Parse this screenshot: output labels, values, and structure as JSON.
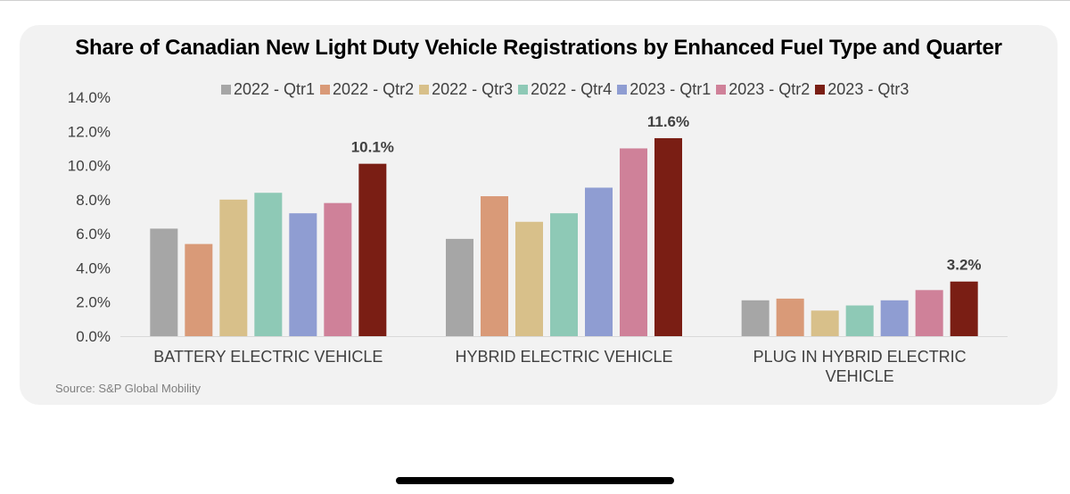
{
  "chart_data": {
    "type": "bar",
    "title": "Share of Canadian New Light Duty Vehicle Registrations by Enhanced Fuel Type and Quarter",
    "categories": [
      [
        "BATTERY ELECTRIC VEHICLE"
      ],
      [
        "HYBRID ELECTRIC VEHICLE"
      ],
      [
        "PLUG IN HYBRID ELECTRIC",
        "VEHICLE"
      ]
    ],
    "series": [
      {
        "name": "2022 - Qtr1",
        "color": "#a6a6a6",
        "values": [
          6.3,
          5.7,
          2.1
        ]
      },
      {
        "name": "2022 - Qtr2",
        "color": "#d99a78",
        "values": [
          5.4,
          8.2,
          2.2
        ]
      },
      {
        "name": "2022 - Qtr3",
        "color": "#d8c08a",
        "values": [
          8.0,
          6.7,
          1.5
        ]
      },
      {
        "name": "2022 - Qtr4",
        "color": "#8ec9b6",
        "values": [
          8.4,
          7.2,
          1.8
        ]
      },
      {
        "name": "2023 - Qtr1",
        "color": "#8f9dd2",
        "values": [
          7.2,
          8.7,
          2.1
        ]
      },
      {
        "name": "2023 - Qtr2",
        "color": "#cf8199",
        "values": [
          7.8,
          11.0,
          2.7
        ]
      },
      {
        "name": "2023 - Qtr3",
        "color": "#7a1e14",
        "values": [
          10.1,
          11.6,
          3.2
        ]
      }
    ],
    "yticks": [
      "0.0%",
      "2.0%",
      "4.0%",
      "6.0%",
      "8.0%",
      "10.0%",
      "12.0%",
      "14.0%"
    ],
    "ylim": [
      0,
      14
    ],
    "data_labels": [
      {
        "category": 0,
        "series": 6,
        "text": "10.1%"
      },
      {
        "category": 1,
        "series": 6,
        "text": "11.6%"
      },
      {
        "category": 2,
        "series": 6,
        "text": "3.2%"
      }
    ],
    "xlabel": "",
    "ylabel": "",
    "grid": false,
    "legend": "top"
  },
  "source": "Source: S&P Global Mobility"
}
